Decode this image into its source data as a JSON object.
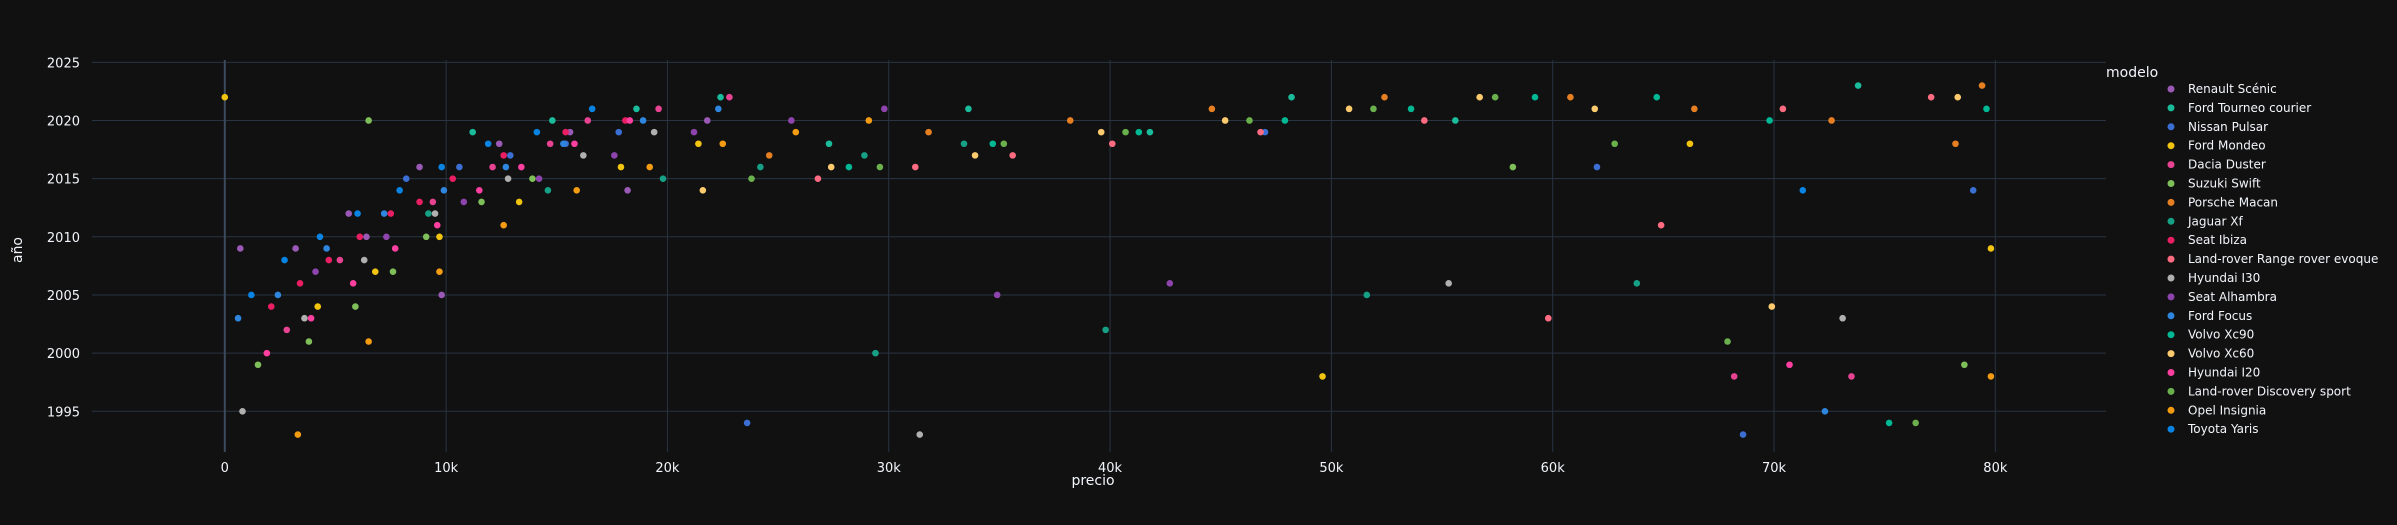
{
  "chart_data": {
    "type": "scatter",
    "xlabel": "precio",
    "ylabel": "año",
    "xlim": [
      -6000,
      85000
    ],
    "ylim": [
      1991.5,
      2025.2
    ],
    "x_ticks": [
      0,
      10000,
      20000,
      30000,
      40000,
      50000,
      60000,
      70000,
      80000
    ],
    "x_tick_labels": [
      "0",
      "10k",
      "20k",
      "30k",
      "40k",
      "50k",
      "60k",
      "70k",
      "80k"
    ],
    "y_ticks": [
      1995,
      2000,
      2005,
      2010,
      2015,
      2020,
      2025
    ],
    "y_tick_labels": [
      "1995",
      "2000",
      "2005",
      "2010",
      "2015",
      "2020",
      "2025"
    ],
    "grid": true,
    "legend_title": "modelo",
    "legend_position": "right",
    "series": [
      {
        "name": "Renault Scénic",
        "color": "#9b59b6",
        "points": [
          [
            3200,
            2009
          ],
          [
            5600,
            2012
          ],
          [
            8800,
            2016
          ],
          [
            12400,
            2018
          ],
          [
            15600,
            2019
          ],
          [
            21800,
            2020
          ],
          [
            700,
            2009
          ],
          [
            6400,
            2010
          ],
          [
            9800,
            2005
          ],
          [
            18200,
            2014
          ]
        ]
      },
      {
        "name": "Ford Tourneo courier",
        "color": "#1abc9c",
        "points": [
          [
            11200,
            2019
          ],
          [
            14800,
            2020
          ],
          [
            18600,
            2021
          ],
          [
            22400,
            2022
          ],
          [
            27300,
            2018
          ],
          [
            33600,
            2021
          ],
          [
            41800,
            2019
          ],
          [
            48200,
            2022
          ],
          [
            55600,
            2020
          ],
          [
            73800,
            2023
          ]
        ]
      },
      {
        "name": "Nissan Pulsar",
        "color": "#3b6fd4",
        "points": [
          [
            8200,
            2015
          ],
          [
            10600,
            2016
          ],
          [
            12900,
            2017
          ],
          [
            15400,
            2018
          ],
          [
            17800,
            2019
          ],
          [
            23600,
            1994
          ],
          [
            47000,
            2019
          ],
          [
            62000,
            2016
          ],
          [
            68600,
            1993
          ],
          [
            79000,
            2014
          ]
        ]
      },
      {
        "name": "Ford Mondeo",
        "color": "#f1c40f",
        "points": [
          [
            0,
            2022
          ],
          [
            4200,
            2004
          ],
          [
            6800,
            2007
          ],
          [
            9700,
            2010
          ],
          [
            13300,
            2013
          ],
          [
            17900,
            2016
          ],
          [
            21400,
            2018
          ],
          [
            49600,
            1998
          ],
          [
            66200,
            2018
          ],
          [
            79800,
            2009
          ]
        ]
      },
      {
        "name": "Dacia Duster",
        "color": "#e84393",
        "points": [
          [
            2800,
            2002
          ],
          [
            5200,
            2008
          ],
          [
            9400,
            2013
          ],
          [
            12100,
            2016
          ],
          [
            14700,
            2018
          ],
          [
            16400,
            2020
          ],
          [
            19600,
            2021
          ],
          [
            22800,
            2022
          ],
          [
            68200,
            1998
          ],
          [
            73500,
            1998
          ]
        ]
      },
      {
        "name": "Suzuki Swift",
        "color": "#7fbf5a",
        "points": [
          [
            1500,
            1999
          ],
          [
            3800,
            2001
          ],
          [
            5900,
            2004
          ],
          [
            7600,
            2007
          ],
          [
            9100,
            2010
          ],
          [
            11600,
            2013
          ],
          [
            13900,
            2015
          ],
          [
            6500,
            2020
          ],
          [
            58200,
            2016
          ],
          [
            78600,
            1999
          ]
        ]
      },
      {
        "name": "Porsche Macan",
        "color": "#e67e22",
        "points": [
          [
            24600,
            2017
          ],
          [
            31800,
            2019
          ],
          [
            38200,
            2020
          ],
          [
            44600,
            2021
          ],
          [
            52400,
            2022
          ],
          [
            60800,
            2022
          ],
          [
            66400,
            2021
          ],
          [
            72600,
            2020
          ],
          [
            78200,
            2018
          ],
          [
            79400,
            2023
          ]
        ]
      },
      {
        "name": "Jaguar Xf",
        "color": "#16a085",
        "points": [
          [
            9200,
            2012
          ],
          [
            14600,
            2014
          ],
          [
            19800,
            2015
          ],
          [
            24200,
            2016
          ],
          [
            28900,
            2017
          ],
          [
            33400,
            2018
          ],
          [
            29400,
            2000
          ],
          [
            39800,
            2002
          ],
          [
            51600,
            2005
          ],
          [
            63800,
            2006
          ]
        ]
      },
      {
        "name": "Seat Ibiza",
        "color": "#e91e63",
        "points": [
          [
            2100,
            2004
          ],
          [
            3400,
            2006
          ],
          [
            4700,
            2008
          ],
          [
            6100,
            2010
          ],
          [
            7500,
            2012
          ],
          [
            8800,
            2013
          ],
          [
            10300,
            2015
          ],
          [
            12600,
            2017
          ],
          [
            15400,
            2019
          ],
          [
            18100,
            2020
          ]
        ]
      },
      {
        "name": "Land-rover Range rover evoque",
        "color": "#ff6b81",
        "points": [
          [
            26800,
            2015
          ],
          [
            31200,
            2016
          ],
          [
            35600,
            2017
          ],
          [
            40100,
            2018
          ],
          [
            46800,
            2019
          ],
          [
            54200,
            2020
          ],
          [
            59800,
            2003
          ],
          [
            64900,
            2011
          ],
          [
            70400,
            2021
          ],
          [
            77100,
            2022
          ]
        ]
      },
      {
        "name": "Hyundai I30",
        "color": "#b0b0b0",
        "points": [
          [
            800,
            1995
          ],
          [
            3600,
            2003
          ],
          [
            6300,
            2008
          ],
          [
            9500,
            2012
          ],
          [
            12800,
            2015
          ],
          [
            16200,
            2017
          ],
          [
            19400,
            2019
          ],
          [
            31400,
            1993
          ],
          [
            55300,
            2006
          ],
          [
            73100,
            2003
          ]
        ]
      },
      {
        "name": "Seat Alhambra",
        "color": "#8e44ad",
        "points": [
          [
            4100,
            2007
          ],
          [
            7300,
            2010
          ],
          [
            10800,
            2013
          ],
          [
            14200,
            2015
          ],
          [
            17600,
            2017
          ],
          [
            21200,
            2019
          ],
          [
            25600,
            2020
          ],
          [
            29800,
            2021
          ],
          [
            34900,
            2005
          ],
          [
            42700,
            2006
          ]
        ]
      },
      {
        "name": "Ford Focus",
        "color": "#2e86de",
        "points": [
          [
            600,
            2003
          ],
          [
            2400,
            2005
          ],
          [
            4600,
            2009
          ],
          [
            7200,
            2012
          ],
          [
            9900,
            2014
          ],
          [
            12700,
            2016
          ],
          [
            15300,
            2018
          ],
          [
            18900,
            2020
          ],
          [
            22300,
            2021
          ],
          [
            72300,
            1995
          ]
        ]
      },
      {
        "name": "Volvo Xc90",
        "color": "#00b894",
        "points": [
          [
            28200,
            2016
          ],
          [
            34700,
            2018
          ],
          [
            41300,
            2019
          ],
          [
            47900,
            2020
          ],
          [
            53600,
            2021
          ],
          [
            59200,
            2022
          ],
          [
            64700,
            2022
          ],
          [
            69800,
            2020
          ],
          [
            75200,
            1994
          ],
          [
            79600,
            2021
          ]
        ]
      },
      {
        "name": "Volvo Xc60",
        "color": "#fdcb6e",
        "points": [
          [
            21600,
            2014
          ],
          [
            27400,
            2016
          ],
          [
            33900,
            2017
          ],
          [
            39600,
            2019
          ],
          [
            45200,
            2020
          ],
          [
            50800,
            2021
          ],
          [
            56700,
            2022
          ],
          [
            61900,
            2021
          ],
          [
            69900,
            2004
          ],
          [
            78300,
            2022
          ]
        ]
      },
      {
        "name": "Hyundai I20",
        "color": "#fd3fa0",
        "points": [
          [
            1900,
            2000
          ],
          [
            3900,
            2003
          ],
          [
            5800,
            2006
          ],
          [
            7700,
            2009
          ],
          [
            9600,
            2011
          ],
          [
            11500,
            2014
          ],
          [
            13400,
            2016
          ],
          [
            15800,
            2018
          ],
          [
            18300,
            2020
          ],
          [
            70700,
            1999
          ]
        ]
      },
      {
        "name": "Land-rover Discovery sport",
        "color": "#6ab04c",
        "points": [
          [
            23800,
            2015
          ],
          [
            29600,
            2016
          ],
          [
            35200,
            2018
          ],
          [
            40700,
            2019
          ],
          [
            46300,
            2020
          ],
          [
            51900,
            2021
          ],
          [
            57400,
            2022
          ],
          [
            62800,
            2018
          ],
          [
            67900,
            2001
          ],
          [
            76400,
            1994
          ]
        ]
      },
      {
        "name": "Opel Insignia",
        "color": "#f39c12",
        "points": [
          [
            3300,
            1993
          ],
          [
            6500,
            2001
          ],
          [
            9700,
            2007
          ],
          [
            12600,
            2011
          ],
          [
            15900,
            2014
          ],
          [
            19200,
            2016
          ],
          [
            22500,
            2018
          ],
          [
            25800,
            2019
          ],
          [
            29100,
            2020
          ],
          [
            79800,
            1998
          ]
        ]
      },
      {
        "name": "Toyota Yaris",
        "color": "#0984e3",
        "points": [
          [
            1200,
            2005
          ],
          [
            2700,
            2008
          ],
          [
            4300,
            2010
          ],
          [
            6000,
            2012
          ],
          [
            7900,
            2014
          ],
          [
            9800,
            2016
          ],
          [
            11900,
            2018
          ],
          [
            14100,
            2019
          ],
          [
            16600,
            2021
          ],
          [
            71300,
            2014
          ]
        ]
      }
    ]
  }
}
